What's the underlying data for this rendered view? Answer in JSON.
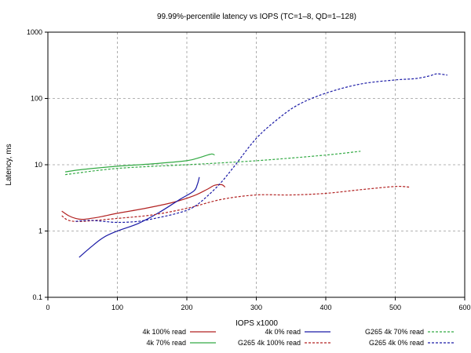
{
  "chart_data": {
    "type": "line",
    "title": "99.99%-percentile latency vs IOPS (TC=1–8, QD=1–128)",
    "xlabel": "IOPS x1000",
    "ylabel": "Latency, ms",
    "xlim": [
      0,
      600
    ],
    "ylim": [
      0.1,
      1000
    ],
    "yscale": "log",
    "grid": true,
    "legend_position": "bottom",
    "x_ticks": [
      "0",
      "100",
      "200",
      "300",
      "400",
      "500",
      "600"
    ],
    "y_ticks": [
      "0.1",
      "1",
      "10",
      "100",
      "1000"
    ],
    "series": [
      {
        "name": "4k 100% read",
        "color": "#b22222",
        "dash": false,
        "x": [
          20,
          30,
          40,
          50,
          70,
          100,
          140,
          180,
          210,
          230,
          240,
          250,
          255
        ],
        "y": [
          2.0,
          1.7,
          1.55,
          1.5,
          1.6,
          1.85,
          2.2,
          2.7,
          3.4,
          4.3,
          4.9,
          5.0,
          4.6
        ]
      },
      {
        "name": "4k 70% read",
        "color": "#33aa44",
        "dash": false,
        "x": [
          25,
          50,
          100,
          150,
          200,
          220,
          235,
          240
        ],
        "y": [
          7.8,
          8.5,
          9.5,
          10.3,
          11.5,
          13.0,
          14.5,
          14.0
        ]
      },
      {
        "name": "4k 0% read",
        "color": "#1a1aa6",
        "dash": false,
        "x": [
          45,
          60,
          80,
          100,
          130,
          160,
          190,
          210,
          215,
          218
        ],
        "y": [
          0.4,
          0.55,
          0.8,
          1.0,
          1.3,
          1.9,
          3.0,
          4.0,
          5.0,
          6.5
        ]
      },
      {
        "name": "G265 4k 100% read",
        "color": "#b22222",
        "dash": true,
        "x": [
          20,
          30,
          50,
          100,
          150,
          200,
          250,
          300,
          350,
          400,
          450,
          500,
          520
        ],
        "y": [
          1.7,
          1.45,
          1.4,
          1.55,
          1.75,
          2.2,
          3.0,
          3.5,
          3.5,
          3.7,
          4.2,
          4.7,
          4.6
        ]
      },
      {
        "name": "G265 4k 70% read",
        "color": "#33aa44",
        "dash": true,
        "x": [
          25,
          100,
          200,
          300,
          400,
          450
        ],
        "y": [
          7.1,
          8.8,
          10.0,
          11.5,
          14.0,
          16.0
        ]
      },
      {
        "name": "G265 4k 0% read",
        "color": "#1a1aa6",
        "dash": true,
        "x": [
          40,
          60,
          80,
          100,
          130,
          160,
          190,
          210,
          230,
          250,
          270,
          300,
          330,
          360,
          400,
          450,
          500,
          530,
          550,
          560,
          575
        ],
        "y": [
          1.4,
          1.45,
          1.4,
          1.35,
          1.4,
          1.6,
          1.9,
          2.3,
          3.4,
          5.5,
          10.0,
          25.0,
          48.0,
          80.0,
          120.0,
          165.0,
          190.0,
          200.0,
          220.0,
          235.0,
          225.0
        ]
      }
    ]
  }
}
